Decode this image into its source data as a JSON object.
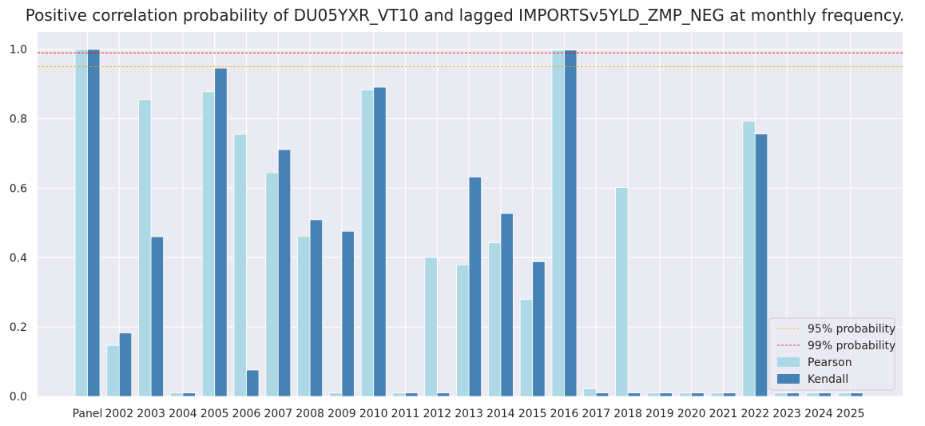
{
  "chart_data": {
    "type": "bar",
    "title": "Positive correlation probability of DU05YXR_VT10 and lagged IMPORTSv5YLD_ZMP_NEG at monthly frequency.",
    "xlabel": "",
    "ylabel": "",
    "ylim": [
      0,
      1.05
    ],
    "yticks": [
      0.0,
      0.2,
      0.4,
      0.6,
      0.8,
      1.0
    ],
    "grid": true,
    "legend_position": "bottom-right",
    "categories": [
      "Panel",
      "2002",
      "2003",
      "2004",
      "2005",
      "2006",
      "2007",
      "2008",
      "2009",
      "2010",
      "2011",
      "2012",
      "2013",
      "2014",
      "2015",
      "2016",
      "2017",
      "2018",
      "2019",
      "2020",
      "2021",
      "2022",
      "2023",
      "2024",
      "2025"
    ],
    "series": [
      {
        "name": "Pearson",
        "color": "#add8e6",
        "values": [
          1.0,
          0.147,
          0.855,
          0.01,
          0.878,
          0.755,
          0.645,
          0.461,
          0.01,
          0.883,
          0.01,
          0.4,
          0.379,
          0.443,
          0.279,
          0.998,
          0.022,
          0.602,
          0.01,
          0.01,
          0.01,
          0.793,
          0.01,
          0.01,
          0.01
        ]
      },
      {
        "name": "Kendall",
        "color": "#4682b4",
        "values": [
          1.0,
          0.183,
          0.46,
          0.01,
          0.946,
          0.076,
          0.711,
          0.509,
          0.476,
          0.891,
          0.01,
          0.01,
          0.632,
          0.527,
          0.388,
          0.998,
          0.01,
          0.01,
          0.01,
          0.01,
          0.01,
          0.756,
          0.01,
          0.01,
          0.01
        ]
      }
    ],
    "reference_lines": [
      {
        "name": "95% probability",
        "y": 0.95,
        "color": "#ffa500",
        "style": "dashed"
      },
      {
        "name": "99% probability",
        "y": 0.99,
        "color": "#ff0000",
        "style": "dashed"
      }
    ]
  }
}
